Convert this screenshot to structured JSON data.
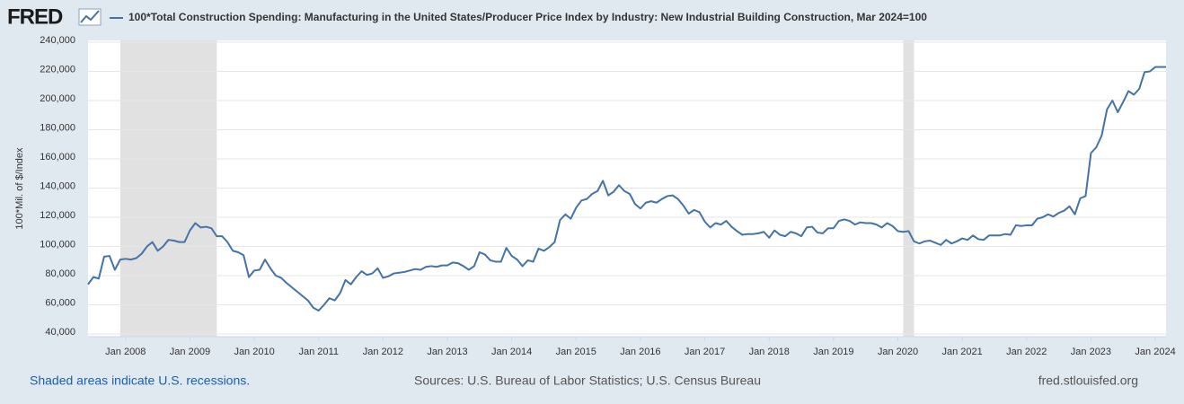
{
  "logo": "FRED",
  "chart_data": {
    "type": "line",
    "y_label": "100*Mil. of $/Index",
    "series": [
      {
        "name": "100*Total Construction Spending: Manufacturing in the United States/Producer Price Index by Industry: New Industrial Building Construction, Mar 2024=100",
        "color": "#4572a7",
        "values": [
          74000,
          79000,
          78000,
          93000,
          93500,
          84000,
          91000,
          91500,
          91000,
          92000,
          95000,
          100000,
          103000,
          97000,
          100000,
          104500,
          104000,
          103000,
          103000,
          111000,
          116000,
          113000,
          113500,
          112500,
          107000,
          107000,
          103000,
          97000,
          96000,
          94000,
          79000,
          83500,
          84000,
          91000,
          85000,
          80000,
          78500,
          75000,
          72000,
          69000,
          66000,
          63000,
          58000,
          56000,
          60000,
          64500,
          63000,
          68000,
          77000,
          74000,
          79000,
          83000,
          80500,
          81500,
          85000,
          78500,
          79500,
          81500,
          82000,
          82500,
          83500,
          84500,
          84000,
          86000,
          86500,
          86000,
          87000,
          87000,
          89000,
          88500,
          86500,
          84000,
          86500,
          96000,
          94500,
          90500,
          89500,
          89500,
          99000,
          93500,
          91000,
          86500,
          90500,
          89500,
          98500,
          97000,
          99500,
          103000,
          118000,
          122000,
          119000,
          126500,
          131500,
          132500,
          136000,
          138000,
          145000,
          135000,
          137500,
          142000,
          138000,
          136000,
          129000,
          126000,
          130000,
          131000,
          130000,
          132500,
          134500,
          135000,
          132500,
          128000,
          122500,
          125000,
          123500,
          117000,
          113000,
          116000,
          115000,
          117500,
          113500,
          110500,
          108000,
          108500,
          108500,
          109000,
          110000,
          106000,
          111000,
          108000,
          107000,
          110000,
          109000,
          107000,
          113000,
          113500,
          109500,
          109000,
          112500,
          112500,
          117500,
          118500,
          117500,
          115000,
          116500,
          116000,
          116000,
          115000,
          113000,
          116000,
          114000,
          110500,
          110000,
          110500,
          103500,
          102000,
          103500,
          104000,
          102500,
          101000,
          104500,
          102000,
          103500,
          105500,
          104500,
          107500,
          105000,
          104500,
          107500,
          107500,
          107500,
          108500,
          108000,
          114500,
          114000,
          114500,
          114500,
          119000,
          120000,
          122000,
          120500,
          123000,
          124500,
          127500,
          122000,
          133000,
          134500,
          164000,
          168000,
          176000,
          194000,
          200000,
          192000,
          199000,
          206500,
          204000,
          208000,
          219500,
          220000,
          223000,
          223000,
          223000
        ]
      }
    ],
    "x": [
      "2007-06",
      "2007-07",
      "2007-08",
      "2007-09",
      "2007-10",
      "2007-11",
      "2007-12",
      "2008-01",
      "2008-02",
      "2008-03",
      "2008-04",
      "2008-05",
      "2008-06",
      "2008-07",
      "2008-08",
      "2008-09",
      "2008-10",
      "2008-11",
      "2008-12",
      "2009-01",
      "2009-02",
      "2009-03",
      "2009-04",
      "2009-05",
      "2009-06",
      "2009-07",
      "2009-08",
      "2009-09",
      "2009-10",
      "2009-11",
      "2009-12",
      "2010-01",
      "2010-02",
      "2010-03",
      "2010-04",
      "2010-05",
      "2010-06",
      "2010-07",
      "2010-08",
      "2010-09",
      "2010-10",
      "2010-11",
      "2010-12",
      "2011-01",
      "2011-02",
      "2011-03",
      "2011-04",
      "2011-05",
      "2011-06",
      "2011-07",
      "2011-08",
      "2011-09",
      "2011-10",
      "2011-11",
      "2011-12",
      "2012-01",
      "2012-02",
      "2012-03",
      "2012-04",
      "2012-05",
      "2012-06",
      "2012-07",
      "2012-08",
      "2012-09",
      "2012-10",
      "2012-11",
      "2012-12",
      "2013-01",
      "2013-02",
      "2013-03",
      "2013-04",
      "2013-05",
      "2013-06",
      "2013-07",
      "2013-08",
      "2013-09",
      "2013-10",
      "2013-11",
      "2013-12",
      "2014-01",
      "2014-02",
      "2014-03",
      "2014-04",
      "2014-05",
      "2014-06",
      "2014-07",
      "2014-08",
      "2014-09",
      "2014-10",
      "2014-11",
      "2014-12",
      "2015-01",
      "2015-02",
      "2015-03",
      "2015-04",
      "2015-05",
      "2015-06",
      "2015-07",
      "2015-08",
      "2015-09",
      "2015-10",
      "2015-11",
      "2015-12",
      "2016-01",
      "2016-02",
      "2016-03",
      "2016-04",
      "2016-05",
      "2016-06",
      "2016-07",
      "2016-08",
      "2016-09",
      "2016-10",
      "2016-11",
      "2016-12",
      "2017-01",
      "2017-02",
      "2017-03",
      "2017-04",
      "2017-05",
      "2017-06",
      "2017-07",
      "2017-08",
      "2017-09",
      "2017-10",
      "2017-11",
      "2017-12",
      "2018-01",
      "2018-02",
      "2018-03",
      "2018-04",
      "2018-05",
      "2018-06",
      "2018-07",
      "2018-08",
      "2018-09",
      "2018-10",
      "2018-11",
      "2018-12",
      "2019-01",
      "2019-02",
      "2019-03",
      "2019-04",
      "2019-05",
      "2019-06",
      "2019-07",
      "2019-08",
      "2019-09",
      "2019-10",
      "2019-11",
      "2019-12",
      "2020-01",
      "2020-02",
      "2020-03",
      "2020-04",
      "2020-05",
      "2020-06",
      "2020-07",
      "2020-08",
      "2020-09",
      "2020-10",
      "2020-11",
      "2020-12",
      "2021-01",
      "2021-02",
      "2021-03",
      "2021-04",
      "2021-05",
      "2021-06",
      "2021-07",
      "2021-08",
      "2021-09",
      "2021-10",
      "2021-11",
      "2021-12",
      "2022-01",
      "2022-02",
      "2022-03",
      "2022-04",
      "2022-05",
      "2022-06",
      "2022-07",
      "2022-08",
      "2022-09",
      "2022-10",
      "2022-11",
      "2022-12",
      "2023-01",
      "2023-02",
      "2023-03",
      "2023-04",
      "2023-05",
      "2023-06",
      "2023-07",
      "2023-08",
      "2023-09",
      "2023-10",
      "2023-11",
      "2023-12",
      "2024-01",
      "2024-02",
      "2024-03"
    ],
    "xlim": [
      "2007-06",
      "2024-03"
    ],
    "xticks": [
      {
        "value": "2008-01",
        "label": "Jan 2008"
      },
      {
        "value": "2009-01",
        "label": "Jan 2009"
      },
      {
        "value": "2010-01",
        "label": "Jan 2010"
      },
      {
        "value": "2011-01",
        "label": "Jan 2011"
      },
      {
        "value": "2012-01",
        "label": "Jan 2012"
      },
      {
        "value": "2013-01",
        "label": "Jan 2013"
      },
      {
        "value": "2014-01",
        "label": "Jan 2014"
      },
      {
        "value": "2015-01",
        "label": "Jan 2015"
      },
      {
        "value": "2016-01",
        "label": "Jan 2016"
      },
      {
        "value": "2017-01",
        "label": "Jan 2017"
      },
      {
        "value": "2018-01",
        "label": "Jan 2018"
      },
      {
        "value": "2019-01",
        "label": "Jan 2019"
      },
      {
        "value": "2020-01",
        "label": "Jan 2020"
      },
      {
        "value": "2021-01",
        "label": "Jan 2021"
      },
      {
        "value": "2022-01",
        "label": "Jan 2022"
      },
      {
        "value": "2023-01",
        "label": "Jan 2023"
      },
      {
        "value": "2024-01",
        "label": "Jan 2024"
      }
    ],
    "ylim": [
      40000,
      240000
    ],
    "yticks": [
      {
        "value": 40000,
        "label": "40,000"
      },
      {
        "value": 60000,
        "label": "60,000"
      },
      {
        "value": 80000,
        "label": "80,000"
      },
      {
        "value": 100000,
        "label": "100,000"
      },
      {
        "value": 120000,
        "label": "120,000"
      },
      {
        "value": 140000,
        "label": "140,000"
      },
      {
        "value": 160000,
        "label": "160,000"
      },
      {
        "value": 180000,
        "label": "180,000"
      },
      {
        "value": 200000,
        "label": "200,000"
      },
      {
        "value": 220000,
        "label": "220,000"
      },
      {
        "value": 240000,
        "label": "240,000"
      }
    ],
    "grid": true,
    "recessions": [
      {
        "start": "2007-12",
        "end": "2009-06"
      },
      {
        "start": "2020-02",
        "end": "2020-04"
      }
    ],
    "recession_color": "#e1e1e1"
  },
  "footer": {
    "left": "Shaded areas indicate U.S. recessions.",
    "center": "Sources: U.S. Bureau of Labor Statistics; U.S. Census Bureau",
    "right": "fred.stlouisfed.org"
  }
}
